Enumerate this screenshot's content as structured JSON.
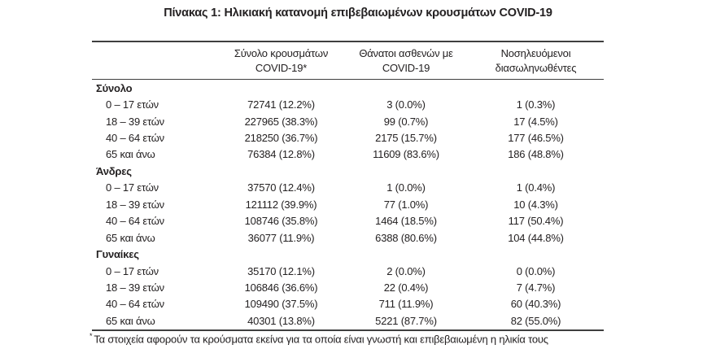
{
  "title": "Πίνακας 1: Ηλικιακή κατανομή επιβεβαιωμένων κρουσμάτων COVID-19",
  "table": {
    "col_headers": [
      {
        "line1": "Σύνολο κρουσμάτων",
        "line2": "COVID-19*"
      },
      {
        "line1": "Θάνατοι ασθενών με",
        "line2": "COVID-19"
      },
      {
        "line1": "Νοσηλευόμενοι",
        "line2": "διασωληνωθέντες"
      }
    ],
    "sections": [
      {
        "label": "Σύνολο",
        "rows": [
          {
            "age": "0 – 17 ετών",
            "cases": "72741 (12.2%)",
            "deaths": "3 (0.0%)",
            "intubated": "1 (0.3%)"
          },
          {
            "age": "18 – 39 ετών",
            "cases": "227965 (38.3%)",
            "deaths": "99 (0.7%)",
            "intubated": "17 (4.5%)"
          },
          {
            "age": "40 – 64 ετών",
            "cases": "218250 (36.7%)",
            "deaths": "2175 (15.7%)",
            "intubated": "177 (46.5%)"
          },
          {
            "age": "65 και άνω",
            "cases": "76384 (12.8%)",
            "deaths": "11609 (83.6%)",
            "intubated": "186 (48.8%)"
          }
        ]
      },
      {
        "label": "Άνδρες",
        "rows": [
          {
            "age": "0 – 17 ετών",
            "cases": "37570 (12.4%)",
            "deaths": "1 (0.0%)",
            "intubated": "1 (0.4%)"
          },
          {
            "age": "18 – 39 ετών",
            "cases": "121112 (39.9%)",
            "deaths": "77 (1.0%)",
            "intubated": "10 (4.3%)"
          },
          {
            "age": "40 – 64 ετών",
            "cases": "108746 (35.8%)",
            "deaths": "1464 (18.5%)",
            "intubated": "117 (50.4%)"
          },
          {
            "age": "65 και άνω",
            "cases": "36077 (11.9%)",
            "deaths": "6388 (80.6%)",
            "intubated": "104 (44.8%)"
          }
        ]
      },
      {
        "label": "Γυναίκες",
        "rows": [
          {
            "age": "0 – 17 ετών",
            "cases": "35170 (12.1%)",
            "deaths": "2 (0.0%)",
            "intubated": "0 (0.0%)"
          },
          {
            "age": "18 – 39 ετών",
            "cases": "106846 (36.6%)",
            "deaths": "22 (0.4%)",
            "intubated": "7 (4.7%)"
          },
          {
            "age": "40 – 64 ετών",
            "cases": "109490 (37.5%)",
            "deaths": "711 (11.9%)",
            "intubated": "60 (40.3%)"
          },
          {
            "age": "65 και άνω",
            "cases": "40301 (13.8%)",
            "deaths": "5221 (87.7%)",
            "intubated": "82 (55.0%)"
          }
        ]
      }
    ]
  },
  "footnote": {
    "marker": "*",
    "text": "Τα στοιχεία αφορούν τα κρούσματα εκείνα για τα οποία είναι γνωστή και επιβεβαιωμένη η ηλικία τους"
  },
  "colors": {
    "text": "#242122",
    "rule": "#3f3f3f",
    "background": "#ffffff"
  }
}
